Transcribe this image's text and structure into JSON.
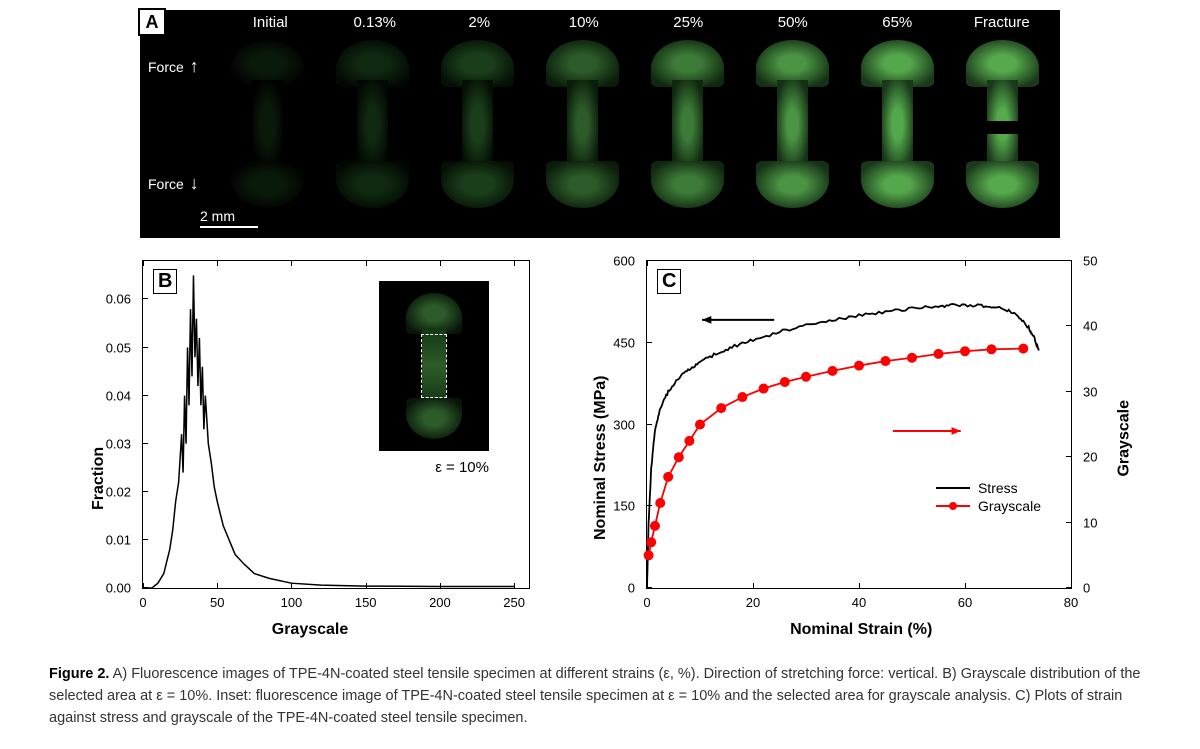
{
  "panelA": {
    "label": "A",
    "strain_labels": [
      "Initial",
      "0.13%",
      "2%",
      "10%",
      "25%",
      "50%",
      "65%",
      "Fracture"
    ],
    "force_text": "Force",
    "scale_text": "2 mm",
    "background": "#000000",
    "specimen_colors": [
      "radial-gradient(ellipse, #0a1a0a 30%, #000 80%)",
      "radial-gradient(ellipse, #0f2810 30%, #020802 80%)",
      "radial-gradient(ellipse, #1a3d1a 30%, #051005 80%)",
      "radial-gradient(ellipse, #2d5c2a 25%, #0a1c0a 80%)",
      "radial-gradient(ellipse, #3d7c38 25%, #10280f 80%)",
      "radial-gradient(ellipse, #4a9443 25%, #153015 80%)",
      "radial-gradient(ellipse, #54a84c 25%, #1a381a 80%)",
      "radial-gradient(ellipse, #56aa4d 25%, #1a381a 80%)"
    ]
  },
  "panelB": {
    "label": "B",
    "type": "line",
    "xlabel": "Grayscale",
    "ylabel": "Fraction",
    "xlim": [
      0,
      260
    ],
    "ylim": [
      0,
      0.068
    ],
    "xticks": [
      0,
      50,
      100,
      150,
      200,
      250
    ],
    "yticks": [
      0.0,
      0.01,
      0.02,
      0.03,
      0.04,
      0.05,
      0.06
    ],
    "ytick_labels": [
      "0.00",
      "0.01",
      "0.02",
      "0.03",
      "0.04",
      "0.05",
      "0.06"
    ],
    "line_color": "#000000",
    "line_width": 1.5,
    "data": [
      [
        0,
        0
      ],
      [
        6,
        0
      ],
      [
        10,
        0.001
      ],
      [
        14,
        0.003
      ],
      [
        18,
        0.008
      ],
      [
        20,
        0.012
      ],
      [
        22,
        0.018
      ],
      [
        24,
        0.022
      ],
      [
        26,
        0.032
      ],
      [
        27,
        0.024
      ],
      [
        28,
        0.04
      ],
      [
        29,
        0.03
      ],
      [
        30,
        0.05
      ],
      [
        31,
        0.038
      ],
      [
        32,
        0.058
      ],
      [
        33,
        0.044
      ],
      [
        34,
        0.065
      ],
      [
        35,
        0.048
      ],
      [
        36,
        0.056
      ],
      [
        37,
        0.042
      ],
      [
        38,
        0.052
      ],
      [
        39,
        0.038
      ],
      [
        40,
        0.046
      ],
      [
        41,
        0.033
      ],
      [
        42,
        0.04
      ],
      [
        44,
        0.03
      ],
      [
        46,
        0.026
      ],
      [
        48,
        0.021
      ],
      [
        50,
        0.018
      ],
      [
        54,
        0.013
      ],
      [
        58,
        0.01
      ],
      [
        62,
        0.007
      ],
      [
        68,
        0.005
      ],
      [
        75,
        0.003
      ],
      [
        85,
        0.002
      ],
      [
        100,
        0.001
      ],
      [
        120,
        0.0006
      ],
      [
        150,
        0.0004
      ],
      [
        200,
        0.0003
      ],
      [
        250,
        0.0003
      ]
    ],
    "inset_label": "ε = 10%",
    "inset_color_top": "radial-gradient(ellipse, #2d5c2a 25%, #081608 80%)"
  },
  "panelC": {
    "label": "C",
    "type": "dual-axis-line",
    "xlabel": "Nominal Strain (%)",
    "ylabel_left": "Nominal Stress (MPa)",
    "ylabel_right": "Grayscale",
    "xlim": [
      0,
      80
    ],
    "ylim_left": [
      0,
      600
    ],
    "ylim_right": [
      0,
      50
    ],
    "xticks": [
      0,
      20,
      40,
      60,
      80
    ],
    "yticks_left": [
      0,
      150,
      300,
      450,
      600
    ],
    "yticks_right": [
      0,
      10,
      20,
      30,
      40,
      50
    ],
    "stress": {
      "color": "#000000",
      "line_width": 1.8,
      "data": [
        [
          0,
          0
        ],
        [
          0.3,
          120
        ],
        [
          0.8,
          220
        ],
        [
          1.5,
          290
        ],
        [
          2.5,
          330
        ],
        [
          4,
          360
        ],
        [
          6,
          385
        ],
        [
          8,
          402
        ],
        [
          10,
          415
        ],
        [
          13,
          430
        ],
        [
          16,
          442
        ],
        [
          20,
          455
        ],
        [
          25,
          470
        ],
        [
          30,
          482
        ],
        [
          35,
          492
        ],
        [
          40,
          500
        ],
        [
          45,
          507
        ],
        [
          50,
          513
        ],
        [
          55,
          517
        ],
        [
          58,
          519
        ],
        [
          62,
          519
        ],
        [
          65,
          517
        ],
        [
          68,
          510
        ],
        [
          70,
          498
        ],
        [
          72,
          478
        ],
        [
          73,
          460
        ],
        [
          74,
          434
        ]
      ]
    },
    "grayscale": {
      "color": "#ff0000",
      "marker_color": "#ff0000",
      "line_width": 1.8,
      "marker_size": 5,
      "data": [
        [
          0.3,
          5
        ],
        [
          0.8,
          7
        ],
        [
          1.5,
          9.5
        ],
        [
          2.5,
          13
        ],
        [
          4,
          17
        ],
        [
          6,
          20
        ],
        [
          8,
          22.5
        ],
        [
          10,
          25
        ],
        [
          14,
          27.5
        ],
        [
          18,
          29.2
        ],
        [
          22,
          30.5
        ],
        [
          26,
          31.5
        ],
        [
          30,
          32.3
        ],
        [
          35,
          33.2
        ],
        [
          40,
          34
        ],
        [
          45,
          34.7
        ],
        [
          50,
          35.2
        ],
        [
          55,
          35.8
        ],
        [
          60,
          36.2
        ],
        [
          65,
          36.5
        ],
        [
          71,
          36.6
        ]
      ]
    },
    "legend": [
      {
        "label": "Stress",
        "color": "#000000",
        "marker": false
      },
      {
        "label": "Grayscale",
        "color": "#ff0000",
        "marker": true
      }
    ],
    "arrow_colors": {
      "left": "#000000",
      "right": "#ff0000"
    }
  },
  "caption": {
    "prefix": "Figure 2.",
    "text": " A) Fluorescence images of TPE-4N-coated steel tensile specimen at different strains (ε, %). Direction of stretching force: vertical. B) Grayscale distribution of the selected area at ε = 10%. Inset: fluorescence image of TPE-4N-coated steel tensile specimen at ε = 10% and the selected area for grayscale analysis. C) Plots of strain against stress and grayscale of the TPE-4N-coated steel tensile specimen.",
    "fontsize": 14.5,
    "color": "#333333"
  }
}
